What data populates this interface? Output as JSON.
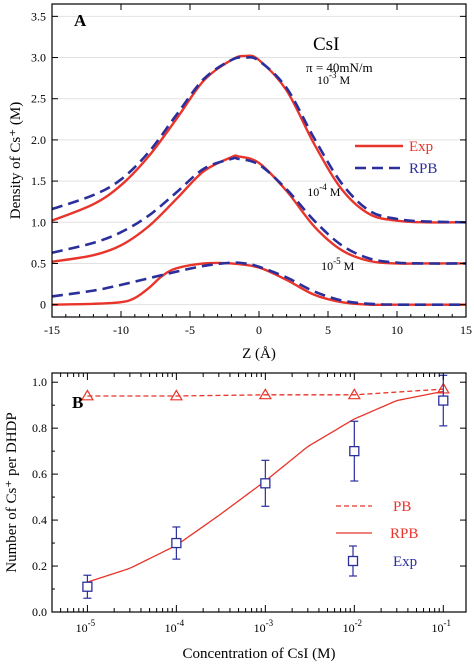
{
  "colors": {
    "exp": "#e8342a",
    "rpb": "#2b2f9c",
    "pb": "#e8342a",
    "marker": "#2b2f9c"
  },
  "chart_data": [
    {
      "id": "A",
      "type": "line",
      "panel_label": "A",
      "xlabel": "Z (Å)",
      "ylabel": "Density of Cs⁺ (M)",
      "xlim": [
        -15,
        15
      ],
      "ylim": [
        -0.15,
        3.65
      ],
      "xticks": [
        -15,
        -10,
        -5,
        0,
        5,
        10,
        15
      ],
      "yticks": [
        0,
        0.5,
        1.0,
        1.5,
        2.0,
        2.5,
        3.0,
        3.5
      ],
      "yticklabels": [
        "0",
        "0.5",
        "1.0",
        "1.5",
        "2.0",
        "2.5",
        "3.0",
        "3.5"
      ],
      "annotations": {
        "salt": "CsI",
        "pressure": "π = 40mN/m"
      },
      "legend": {
        "position": "right",
        "entries": [
          {
            "label": "Exp",
            "style": "solid"
          },
          {
            "label": "RPB",
            "style": "dashed"
          }
        ]
      },
      "curve_labels": [
        {
          "text": "10",
          "exp": "-3",
          "unit": " M",
          "x": 4.2,
          "y": 2.68
        },
        {
          "text": "10",
          "exp": "-4",
          "unit": " M",
          "x": 3.5,
          "y": 1.32
        },
        {
          "text": "10",
          "exp": "-5",
          "unit": " M",
          "x": 4.5,
          "y": 0.42
        }
      ],
      "series": [
        {
          "name": "Exp",
          "concentration": "10^-3 M",
          "style": "solid",
          "x": [
            -15,
            -12,
            -10,
            -8,
            -6,
            -4,
            -2,
            -1,
            0,
            2,
            4,
            6,
            8,
            10,
            12,
            15
          ],
          "y": [
            1.02,
            1.22,
            1.45,
            1.8,
            2.25,
            2.72,
            2.97,
            3.02,
            2.97,
            2.6,
            1.95,
            1.4,
            1.1,
            1.02,
            1.0,
            1.0
          ]
        },
        {
          "name": "RPB",
          "concentration": "10^-3 M",
          "style": "dashed",
          "x": [
            -15,
            -12,
            -10,
            -8,
            -6,
            -4,
            -2,
            -1,
            0,
            2,
            4,
            6,
            8,
            10,
            12,
            15
          ],
          "y": [
            1.16,
            1.33,
            1.52,
            1.85,
            2.3,
            2.74,
            2.97,
            3.0,
            2.96,
            2.63,
            2.02,
            1.47,
            1.14,
            1.04,
            1.01,
            1.0
          ]
        },
        {
          "name": "Exp",
          "concentration": "10^-4 M",
          "style": "solid",
          "x": [
            -15,
            -12,
            -10,
            -8,
            -6,
            -4,
            -2,
            -1.5,
            0,
            2,
            4,
            6,
            8,
            10,
            12,
            15
          ],
          "y": [
            0.52,
            0.6,
            0.72,
            0.95,
            1.28,
            1.62,
            1.79,
            1.8,
            1.72,
            1.38,
            0.95,
            0.66,
            0.53,
            0.5,
            0.5,
            0.5
          ]
        },
        {
          "name": "RPB",
          "concentration": "10^-4 M",
          "style": "dashed",
          "x": [
            -15,
            -12,
            -10,
            -8,
            -6,
            -4,
            -2,
            -1.5,
            0,
            2,
            4,
            6,
            8,
            10,
            12,
            15
          ],
          "y": [
            0.63,
            0.75,
            0.88,
            1.08,
            1.36,
            1.65,
            1.77,
            1.77,
            1.7,
            1.4,
            1.02,
            0.72,
            0.56,
            0.51,
            0.5,
            0.5
          ]
        },
        {
          "name": "Exp",
          "concentration": "10^-5 M",
          "style": "solid",
          "x": [
            -15,
            -12,
            -10,
            -9,
            -8,
            -7,
            -6,
            -4,
            -2,
            0,
            2,
            4,
            6,
            8,
            10,
            12,
            15
          ],
          "y": [
            0.0,
            0.01,
            0.03,
            0.08,
            0.2,
            0.35,
            0.44,
            0.5,
            0.5,
            0.45,
            0.3,
            0.12,
            0.03,
            0.0,
            0.0,
            0.0,
            0.0
          ]
        },
        {
          "name": "RPB",
          "concentration": "10^-5 M",
          "style": "dashed",
          "x": [
            -15,
            -12,
            -10,
            -8,
            -6,
            -4,
            -2,
            -1,
            0,
            2,
            4,
            6,
            8,
            10,
            12,
            15
          ],
          "y": [
            0.1,
            0.17,
            0.24,
            0.32,
            0.4,
            0.47,
            0.51,
            0.5,
            0.46,
            0.33,
            0.16,
            0.05,
            0.01,
            0.0,
            0.0,
            0.0
          ]
        }
      ]
    },
    {
      "id": "B",
      "type": "line",
      "panel_label": "B",
      "xlabel": "Concentration of CsI (M)",
      "ylabel": "Number of Cs⁺ per DHDP",
      "xscale": "log",
      "xlim": [
        4e-06,
        0.18
      ],
      "ylim": [
        0,
        1.04
      ],
      "xticks": [
        1e-05,
        0.0001,
        0.001,
        0.01,
        0.1
      ],
      "xticklabels": [
        {
          "base": "10",
          "exp": "-5"
        },
        {
          "base": "10",
          "exp": "-4"
        },
        {
          "base": "10",
          "exp": "-3"
        },
        {
          "base": "10",
          "exp": "-2"
        },
        {
          "base": "10",
          "exp": "-1"
        }
      ],
      "yticks": [
        0,
        0.2,
        0.4,
        0.6,
        0.8,
        1.0
      ],
      "yticklabels": [
        "0.0",
        "0.2",
        "0.4",
        "0.6",
        "0.8",
        "1.0"
      ],
      "legend": {
        "position": "bottom-right",
        "entries": [
          {
            "label": "PB",
            "style": "dashed"
          },
          {
            "label": "RPB",
            "style": "solid"
          },
          {
            "label": "Exp",
            "style": "square"
          }
        ]
      },
      "series": [
        {
          "name": "PB",
          "style": "dashed-triangle",
          "x": [
            1e-05,
            0.0001,
            0.001,
            0.01,
            0.1
          ],
          "y": [
            0.94,
            0.94,
            0.945,
            0.945,
            0.97
          ]
        },
        {
          "name": "RPB",
          "style": "solid",
          "x": [
            1e-05,
            3e-05,
            0.0001,
            0.0003,
            0.001,
            0.003,
            0.01,
            0.03,
            0.1
          ],
          "y": [
            0.13,
            0.19,
            0.29,
            0.42,
            0.57,
            0.72,
            0.84,
            0.92,
            0.96
          ]
        },
        {
          "name": "Exp",
          "style": "square-errorbar",
          "x": [
            1e-05,
            0.0001,
            0.001,
            0.01,
            0.1
          ],
          "y": [
            0.11,
            0.3,
            0.56,
            0.7,
            0.92
          ],
          "err": [
            0.05,
            0.07,
            0.1,
            0.13,
            0.11
          ]
        }
      ]
    }
  ]
}
